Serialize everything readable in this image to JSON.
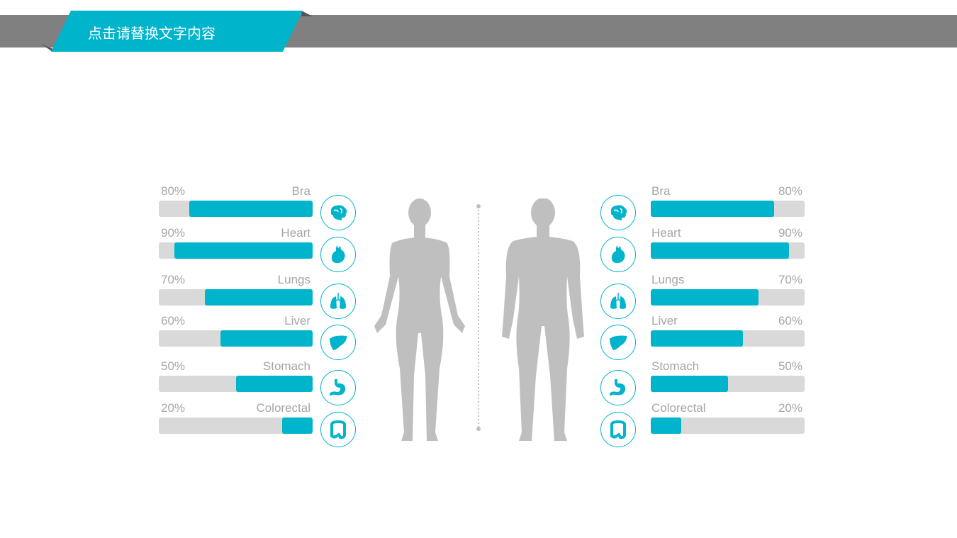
{
  "header": {
    "title": "点击请替换文字内容"
  },
  "colors": {
    "accent": "#00b4cc",
    "track": "#d9d9d9",
    "silhouette": "#bfbfbf",
    "band": "#808080"
  },
  "chart_data": {
    "type": "bar",
    "categories": [
      "Bra",
      "Heart",
      "Lungs",
      "Liver",
      "Stomach",
      "Colorectal"
    ],
    "series": [
      {
        "values": [
          80,
          90,
          70,
          60,
          50,
          20
        ],
        "labels": [
          "80%",
          "90%",
          "70%",
          "60%",
          "50%",
          "20%"
        ]
      },
      {
        "values": [
          80,
          90,
          70,
          60,
          50,
          20
        ],
        "labels": [
          "80%",
          "90%",
          "70%",
          "60%",
          "50%",
          "20%"
        ]
      }
    ],
    "icons": [
      "brain-icon",
      "heart-icon",
      "lungs-icon",
      "liver-icon",
      "stomach-icon",
      "colon-icon"
    ],
    "ylim": [
      0,
      100
    ]
  }
}
